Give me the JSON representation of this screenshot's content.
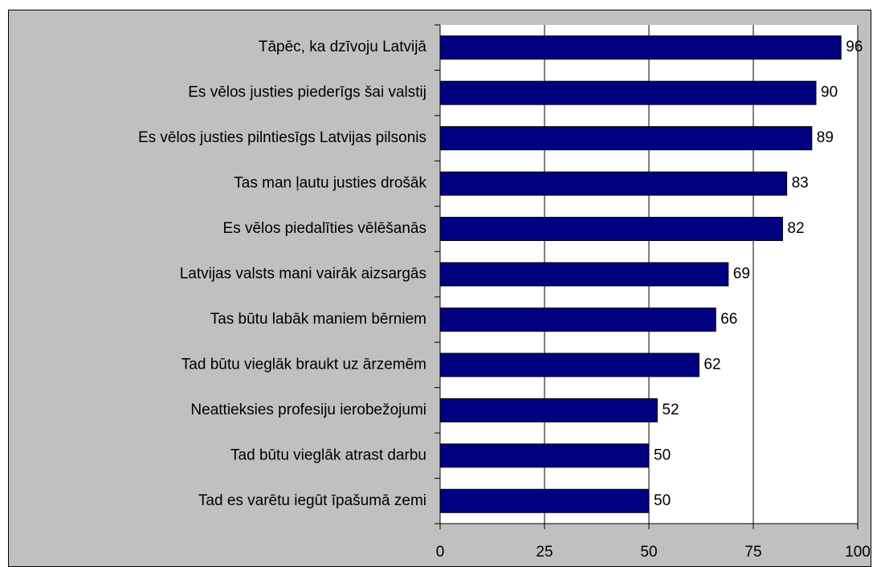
{
  "chart_data": {
    "type": "bar",
    "orientation": "horizontal",
    "categories": [
      "Tāpēc, ka dzīvoju Latvijā",
      "Es vēlos justies piederīgs šai valstij",
      "Es vēlos justies pilntiesīgs Latvijas pilsonis",
      "Tas man ļautu justies drošāk",
      "Es vēlos piedalīties vēlēšanās",
      "Latvijas valsts mani vairāk aizsargās",
      "Tas būtu labāk maniem bērniem",
      "Tad būtu vieglāk braukt uz ārzemēm",
      "Neattieksies profesiju ierobežojumi",
      "Tad būtu vieglāk atrast darbu",
      "Tad es varētu iegūt īpašumā zemi"
    ],
    "values": [
      96,
      90,
      89,
      83,
      82,
      69,
      66,
      62,
      52,
      50,
      50
    ],
    "color": "#000080",
    "xlim": [
      0,
      100
    ],
    "xticks": [
      0,
      25,
      50,
      75,
      100
    ],
    "grid": true
  }
}
